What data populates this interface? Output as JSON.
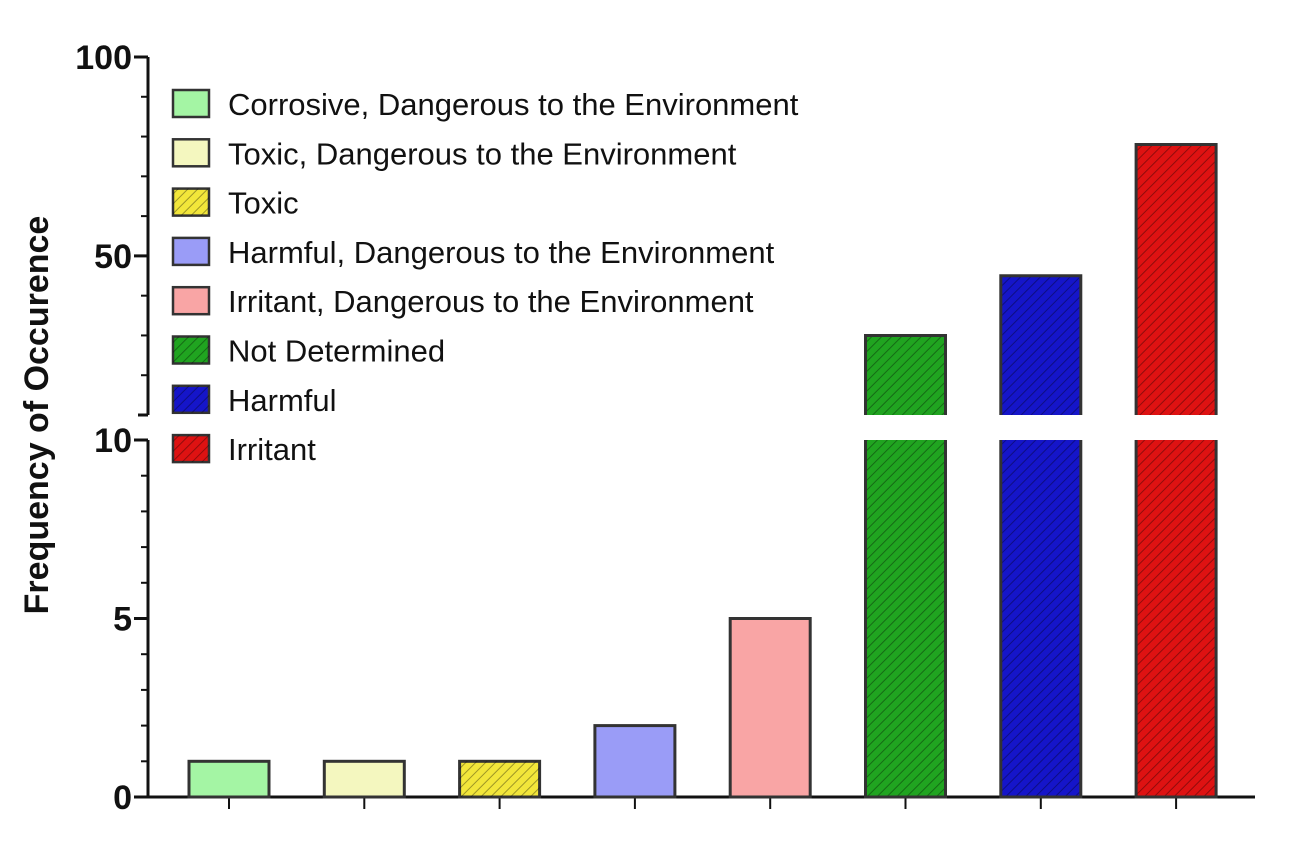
{
  "chart_data": {
    "type": "bar",
    "ylabel": "Frequency of Occurence",
    "xlabel": "",
    "y_axis_broken": true,
    "y_segments": [
      {
        "ylim": [
          0,
          10
        ],
        "ticks": [
          0,
          5,
          10
        ],
        "minor_step": 1
      },
      {
        "ylim": [
          10,
          100
        ],
        "ticks": [
          50,
          100
        ],
        "minor_step": 10
      }
    ],
    "grid": false,
    "legend_position": "top-left",
    "categories": [
      "Corrosive, Dangerous to the Environment",
      "Toxic, Dangerous to the Environment",
      "Toxic",
      "Harmful, Dangerous to the Environment",
      "Irritant, Dangerous to the Environment",
      "Not Determined",
      "Harmful",
      "Irritant"
    ],
    "values": [
      1,
      1,
      1,
      2,
      5,
      30,
      45,
      78
    ],
    "colors": [
      "#a4f5a4",
      "#f4f7bf",
      "#f2e63a",
      "#9a9cf7",
      "#f9a5a5",
      "#20a420",
      "#1515c9",
      "#de1212"
    ],
    "hatched": [
      false,
      false,
      true,
      false,
      false,
      true,
      true,
      true
    ]
  }
}
